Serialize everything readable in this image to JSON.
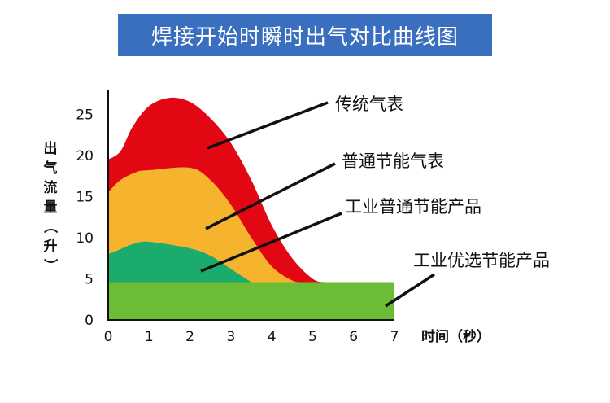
{
  "title": "焊接开始时瞬时出气对比曲线图",
  "chart_data": {
    "type": "area",
    "title": "焊接开始时瞬时出气对比曲线图",
    "xlabel": "时间（秒）",
    "ylabel": "出气流量（升）",
    "xlim": [
      0,
      7
    ],
    "ylim": [
      0,
      28
    ],
    "x_ticks": [
      "0",
      "1",
      "2",
      "3",
      "4",
      "5",
      "6",
      "7"
    ],
    "y_ticks": [
      "0",
      "5",
      "10",
      "15",
      "20",
      "25"
    ],
    "grid": false,
    "legend": "callouts",
    "series": [
      {
        "name": "传统气表",
        "color": "#e30613",
        "x": [
          0,
          0.3,
          0.6,
          1.0,
          1.5,
          2.0,
          2.5,
          3.0,
          3.5,
          4.0,
          4.5,
          5.0,
          5.3
        ],
        "values": [
          19.5,
          20.5,
          23.5,
          26,
          27,
          26.5,
          24.5,
          21.5,
          17,
          11.5,
          7.5,
          5,
          4.6
        ]
      },
      {
        "name": "普通节能气表",
        "color": "#f6b42e",
        "x": [
          0,
          0.3,
          0.7,
          1.0,
          2.0,
          2.5,
          3.0,
          3.5,
          4.0,
          4.5,
          4.8
        ],
        "values": [
          15.5,
          17,
          18,
          18.2,
          18.5,
          17,
          14,
          10,
          6.5,
          4.8,
          4.6
        ]
      },
      {
        "name": "工业普通节能产品",
        "color": "#1aab6d",
        "x": [
          0,
          0.3,
          0.6,
          1.0,
          2.0,
          2.5,
          3.0,
          3.5
        ],
        "values": [
          8,
          8.6,
          9.2,
          9.5,
          8.7,
          7.8,
          6.2,
          4.6
        ]
      },
      {
        "name": "工业优选节能产品",
        "color": "#6cbd35",
        "x": [
          0,
          7
        ],
        "values": [
          4.6,
          4.6
        ]
      }
    ]
  }
}
